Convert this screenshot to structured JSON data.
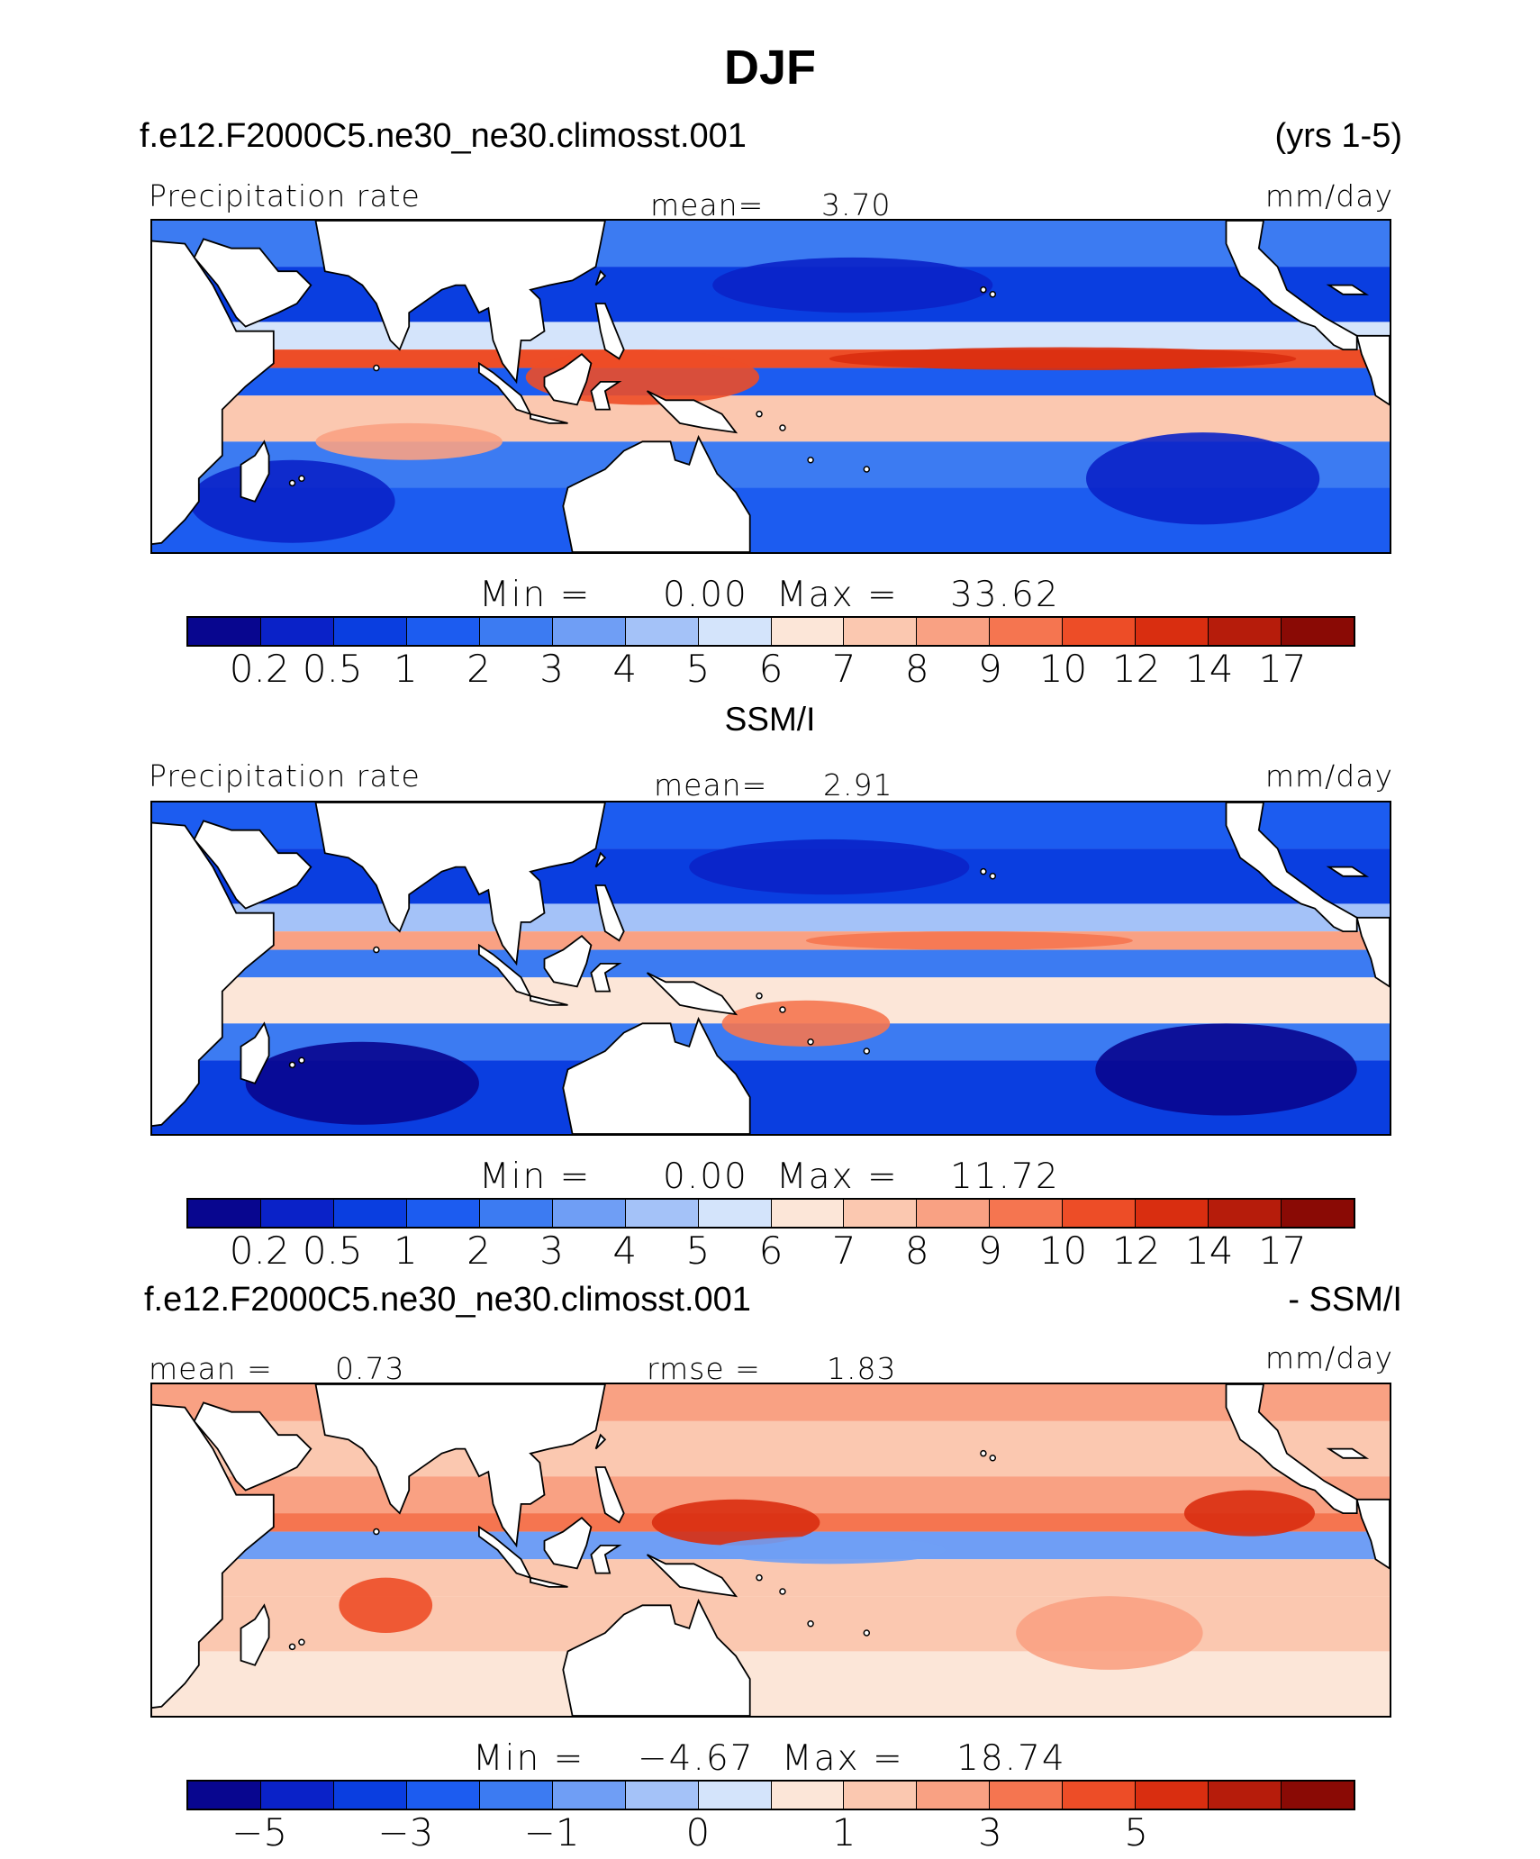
{
  "figure_title": "DJF",
  "header": {
    "case_name": "f.e12.F2000C5.ne30_ne30.climosst.001",
    "years": "(yrs 1-5)",
    "obs_name": "SSM/I",
    "diff_case": "f.e12.F2000C5.ne30_ne30.climosst.001",
    "diff_suffix": "- SSM/I"
  },
  "colors": {
    "precip_scale": [
      "#08068f",
      "#0a22c8",
      "#0a3ee0",
      "#1c5cf0",
      "#3c7bf2",
      "#6f9ef5",
      "#a4c2f8",
      "#d4e4fb",
      "#fce6d8",
      "#fbc8b0",
      "#f9a183",
      "#f57550",
      "#ed4d27",
      "#d92e10",
      "#b61c0b",
      "#8a0a05"
    ],
    "diff_scale": [
      "#08068f",
      "#0a22c8",
      "#0a3ee0",
      "#1c5cf0",
      "#3c7bf2",
      "#6f9ef5",
      "#a4c2f8",
      "#d4e4fb",
      "#fce6d8",
      "#fbc8b0",
      "#f9a183",
      "#f57550",
      "#ed4d27",
      "#d92e10",
      "#b61c0b",
      "#8a0a05"
    ],
    "land": "#ffffff",
    "coast": "#000000"
  },
  "chart_data": [
    {
      "type": "heatmap",
      "panel": "model",
      "left_label": "Precipitation rate",
      "center_label": "mean=",
      "center_value": "3.70",
      "units": "mm/day",
      "min_label": "Min  =",
      "min_value": "0.00",
      "max_label": "Max  =",
      "max_value": "33.62",
      "colorbar_ticks": [
        "0.2",
        "0.5",
        "1",
        "2",
        "3",
        "4",
        "5",
        "6",
        "7",
        "8",
        "9",
        "10",
        "12",
        "14",
        "17"
      ],
      "mean": 3.7,
      "min": 0.0,
      "max": 33.62
    },
    {
      "type": "heatmap",
      "panel": "observation",
      "left_label": "Precipitation rate",
      "center_label": "mean=",
      "center_value": "2.91",
      "units": "mm/day",
      "min_label": "Min  =",
      "min_value": "0.00",
      "max_label": "Max  =",
      "max_value": "11.72",
      "colorbar_ticks": [
        "0.2",
        "0.5",
        "1",
        "2",
        "3",
        "4",
        "5",
        "6",
        "7",
        "8",
        "9",
        "10",
        "12",
        "14",
        "17"
      ],
      "mean": 2.91,
      "min": 0.0,
      "max": 11.72
    },
    {
      "type": "heatmap",
      "panel": "difference",
      "left_label": "mean  =",
      "left_value": "0.73",
      "center_label": "rmse  =",
      "center_value": "1.83",
      "units": "mm/day",
      "min_label": "Min  =",
      "min_value": "−4.67",
      "max_label": "Max  =",
      "max_value": "18.74",
      "colorbar_ticks": [
        "−5",
        "−3",
        "−1",
        "0",
        "1",
        "3",
        "5"
      ],
      "mean": 0.73,
      "rmse": 1.83,
      "min": -4.67,
      "max": 18.74
    }
  ]
}
